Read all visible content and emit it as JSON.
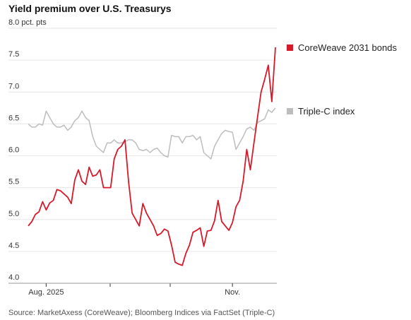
{
  "chart_data": {
    "type": "line",
    "title": "Yield premium over U.S. Treasurys",
    "source": "Source: MarketAxess (CoreWeave); Bloomberg Indices via FactSet (Triple-C)",
    "categories": [
      null,
      null,
      null,
      null,
      null,
      "Aug. 2025",
      null,
      null,
      null,
      null,
      null,
      null,
      null,
      null,
      null,
      null,
      null,
      null,
      null,
      null,
      null,
      null,
      null,
      null,
      null,
      null,
      null,
      null,
      null,
      null,
      null,
      null,
      null,
      null,
      null,
      null,
      null,
      null,
      null,
      null,
      null,
      null,
      null,
      null,
      null,
      null,
      null,
      null,
      null,
      null,
      null,
      null,
      null,
      null,
      null,
      null,
      null,
      "Nov.",
      null,
      null,
      null,
      null,
      null,
      null,
      null,
      null,
      null,
      null,
      null,
      null
    ],
    "series": [
      {
        "name": "CoreWeave 2031 bonds",
        "color": "#d7192a",
        "values": [
          4.9,
          4.97,
          5.08,
          5.12,
          5.28,
          5.15,
          5.26,
          5.3,
          5.47,
          5.45,
          5.4,
          5.35,
          5.25,
          5.62,
          5.78,
          5.6,
          5.55,
          5.82,
          5.68,
          5.7,
          5.78,
          5.5,
          5.5,
          5.5,
          5.95,
          6.1,
          6.15,
          6.25,
          5.6,
          5.1,
          5.0,
          4.9,
          5.25,
          5.1,
          5.0,
          4.9,
          4.75,
          4.78,
          4.85,
          4.82,
          4.6,
          4.33,
          4.3,
          4.28,
          4.47,
          4.6,
          4.8,
          4.83,
          4.87,
          4.58,
          4.82,
          4.83,
          4.98,
          5.3,
          4.97,
          4.9,
          4.83,
          4.95,
          5.2,
          5.3,
          5.6,
          6.1,
          5.78,
          6.2,
          6.6,
          7.0,
          7.2,
          7.42,
          6.85,
          7.7
        ]
      },
      {
        "name": "Triple-C index",
        "color": "#bdbdbd",
        "values": [
          6.5,
          6.45,
          6.45,
          6.5,
          6.48,
          6.7,
          6.6,
          6.5,
          6.45,
          6.45,
          6.48,
          6.4,
          6.45,
          6.55,
          6.6,
          6.7,
          6.6,
          6.55,
          6.3,
          6.15,
          6.1,
          6.05,
          6.2,
          6.2,
          6.25,
          6.2,
          6.2,
          6.22,
          6.25,
          6.25,
          6.2,
          6.1,
          6.08,
          6.1,
          6.05,
          6.1,
          6.12,
          6.05,
          6.0,
          5.98,
          6.32,
          6.3,
          6.3,
          6.2,
          6.3,
          6.3,
          6.32,
          6.25,
          6.3,
          6.05,
          6.0,
          5.95,
          6.15,
          6.25,
          6.35,
          6.4,
          6.38,
          6.37,
          6.1,
          6.2,
          6.3,
          6.42,
          6.45,
          6.4,
          6.52,
          6.55,
          6.58,
          6.72,
          6.68,
          6.75
        ]
      }
    ],
    "ylim": [
      4,
      8
    ],
    "yticks": [
      {
        "value": 4,
        "label": "4.0"
      },
      4.5,
      {
        "value": 5,
        "label": "5.0"
      },
      5.5,
      {
        "value": 6,
        "label": "6.0"
      },
      6.5,
      {
        "value": 7,
        "label": "7.0"
      },
      7.5,
      {
        "value": 8,
        "label": "8.0 pct. pts"
      }
    ],
    "grid": true
  }
}
